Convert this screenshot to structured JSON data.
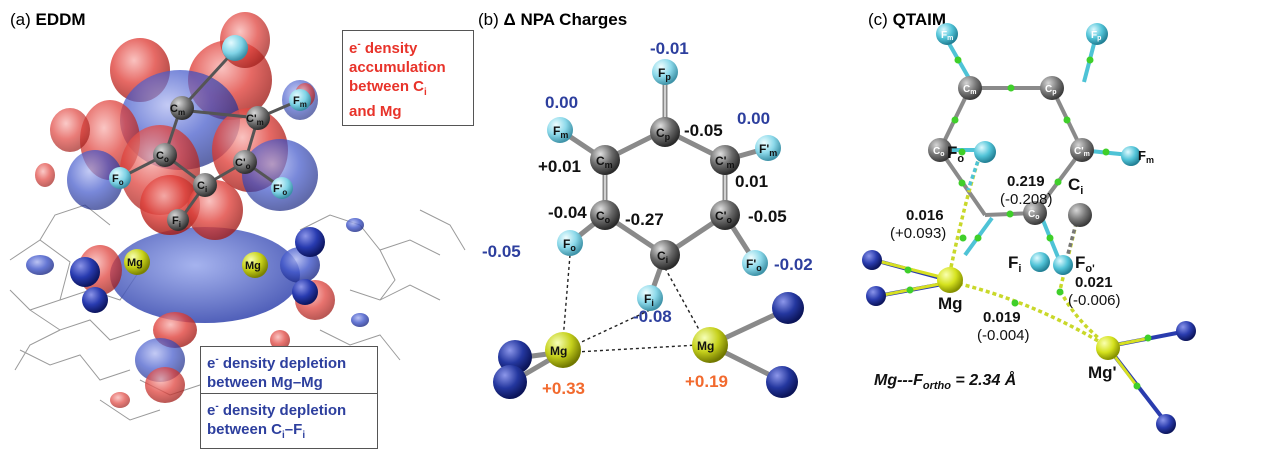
{
  "panel_a": {
    "label": "(a)",
    "title": "EDDM",
    "accum_box": {
      "prefix": "e",
      "sup": "-",
      "line1": " density",
      "line2": "accumulation",
      "line3": "between C",
      "sub3": "i",
      "line4": "and Mg"
    },
    "depl_box1": {
      "prefix": "e",
      "sup": "-",
      "line1": " density depletion",
      "line2": "between Mg–Mg"
    },
    "depl_box2": {
      "prefix": "e",
      "sup": "-",
      "line1": " density depletion",
      "line2": "between C",
      "sub2": "i",
      "line2b": "–F",
      "sub2b": "i"
    },
    "atoms": {
      "cm": "C",
      "cm_sub": "m",
      "cmp": "C'",
      "cmp_sub": "m",
      "fm": "F",
      "fm_sub": "m",
      "co": "C",
      "co_sub": "o",
      "cop": "C'",
      "cop_sub": "o",
      "fo": "F",
      "fo_sub": "o",
      "ci": "C",
      "ci_sub": "i",
      "fop": "F'",
      "fop_sub": "o",
      "fi": "F",
      "fi_sub": "i",
      "mg1": "Mg",
      "mg2": "Mg"
    }
  },
  "panel_b": {
    "label": "(b)",
    "title": "Δ NPA Charges",
    "atoms": {
      "fp": "F",
      "fp_sub": "p",
      "cp": "C",
      "cp_sub": "p",
      "fm": "F",
      "fm_sub": "m",
      "fmp": "F'",
      "fmp_sub": "m",
      "cm": "C",
      "cm_sub": "m",
      "cmp": "C'",
      "cmp_sub": "m",
      "co": "C",
      "co_sub": "o",
      "cop": "C'",
      "cop_sub": "o",
      "ci": "C",
      "ci_sub": "i",
      "fo": "F",
      "fo_sub": "o",
      "fop": "F'",
      "fop_sub": "o",
      "fi": "F",
      "fi_sub": "i",
      "mg1": "Mg",
      "mg2": "Mg"
    },
    "charges": {
      "fp": "-0.01",
      "fm": "0.00",
      "fmp": "0.00",
      "cp": "-0.05",
      "cm": "+0.01",
      "cmp": "0.01",
      "co": "-0.04",
      "ci": "-0.27",
      "cop": "-0.05",
      "fo": "-0.05",
      "fop": "-0.02",
      "fi": "-0.08",
      "mg1": "+0.33",
      "mg2": "+0.19"
    },
    "colors": {
      "blue": "#2d3f9e",
      "orange": "#f26a2e",
      "black": "#111111"
    }
  },
  "panel_c": {
    "label": "(c)",
    "title": "QTAIM",
    "atoms": {
      "fm": "F",
      "fm_sub": "m",
      "fp": "F",
      "fp_sub": "p",
      "cm": "C",
      "cm_sub": "m",
      "cp": "C",
      "cp_sub": "p",
      "co": "C",
      "co_sub": "o",
      "cmp": "C'",
      "cmp_sub": "m",
      "fr": "F",
      "fr_sub": "m",
      "fo": "F",
      "fo_sub": "o",
      "ci": "C",
      "ci_sub": "i",
      "fi": "F",
      "fi_sub": "i",
      "co2": "C",
      "co2_sub": "o",
      "fop": "F",
      "fop_sub": "o'",
      "mg": "Mg",
      "mgp": "Mg'"
    },
    "values": {
      "v1a": "0.016",
      "v1b": "(+0.093)",
      "v2a": "0.219",
      "v2b": "(-0.208)",
      "v3a": "0.021",
      "v3b": "(-0.006)",
      "v4a": "0.019",
      "v4b": "(-0.004)"
    },
    "note_prefix": "Mg---F",
    "note_sub": "ortho",
    "note_suffix": " = 2.34 Å"
  }
}
